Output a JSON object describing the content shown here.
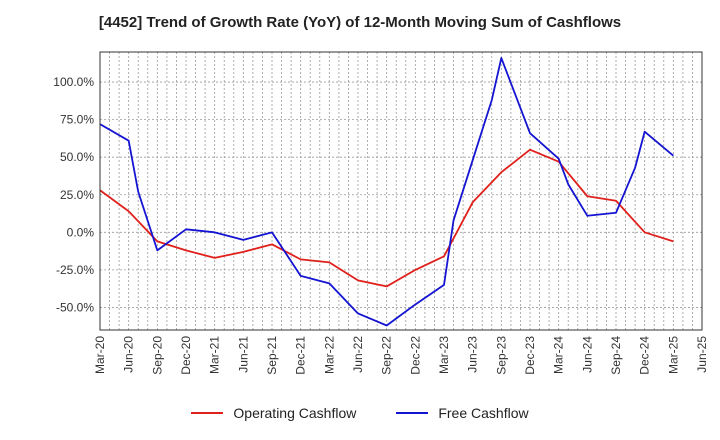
{
  "chart_data": {
    "type": "line",
    "title": "[4452]  Trend of Growth Rate (YoY) of 12-Month Moving Sum of Cashflows",
    "x": [
      "Mar-20",
      "Jun-20",
      "Sep-20",
      "Dec-20",
      "Mar-21",
      "Jun-21",
      "Sep-21",
      "Dec-21",
      "Mar-22",
      "Jun-22",
      "Sep-22",
      "Dec-22",
      "Mar-23",
      "Jun-23",
      "Sep-23",
      "Dec-23",
      "Mar-24",
      "Jun-24",
      "Sep-24",
      "Dec-24",
      "Mar-25",
      "Jun-25"
    ],
    "y_ticks": [
      100,
      75,
      50,
      25,
      0,
      -25,
      -50
    ],
    "y_tick_labels": [
      "100.0%",
      "75.0%",
      "50.0%",
      "25.0%",
      "0.0%",
      "-25.0%",
      "-50.0%"
    ],
    "ylim": [
      -65,
      120
    ],
    "grid": true,
    "legend_position": "bottom-center",
    "series": [
      {
        "name": "Operating Cashflow",
        "color": "#e0201b",
        "points": [
          [
            "Mar-20",
            28
          ],
          [
            "Jun-20",
            14
          ],
          [
            "Sep-20",
            -6
          ],
          [
            "Dec-20",
            -12
          ],
          [
            "Mar-21",
            -17
          ],
          [
            "Jun-21",
            -13
          ],
          [
            "Sep-21",
            -8
          ],
          [
            "Dec-21",
            -18
          ],
          [
            "Mar-22",
            -20
          ],
          [
            "Jun-22",
            -32
          ],
          [
            "Sep-22",
            -36
          ],
          [
            "Dec-22",
            -25
          ],
          [
            "Mar-23",
            -16
          ],
          [
            "Jun-23",
            20
          ],
          [
            "Sep-23",
            40
          ],
          [
            "Dec-23",
            55
          ],
          [
            "Mar-24",
            47
          ],
          [
            "Jun-24",
            24
          ],
          [
            "Sep-24",
            21
          ],
          [
            "Dec-24",
            0
          ],
          [
            "Mar-25",
            -6
          ]
        ]
      },
      {
        "name": "Free Cashflow",
        "color": "#1414d2",
        "points": [
          [
            "Mar-20",
            72
          ],
          [
            "Jun-20",
            61
          ],
          [
            "Jul-20",
            27
          ],
          [
            "Sep-20",
            -12
          ],
          [
            "Dec-20",
            2
          ],
          [
            "Mar-21",
            0
          ],
          [
            "Jun-21",
            -5
          ],
          [
            "Sep-21",
            0
          ],
          [
            "Dec-21",
            -29
          ],
          [
            "Mar-22",
            -34
          ],
          [
            "Jun-22",
            -54
          ],
          [
            "Sep-22",
            -62
          ],
          [
            "Dec-22",
            -48
          ],
          [
            "Mar-23",
            -35
          ],
          [
            "Apr-23",
            8
          ],
          [
            "Jun-23",
            48
          ],
          [
            "Aug-23",
            88
          ],
          [
            "Sep-23",
            116
          ],
          [
            "Dec-23",
            66
          ],
          [
            "Mar-24",
            49
          ],
          [
            "Apr-24",
            32
          ],
          [
            "Jun-24",
            11
          ],
          [
            "Sep-24",
            13
          ],
          [
            "Nov-24",
            43
          ],
          [
            "Dec-24",
            67
          ],
          [
            "Mar-25",
            51
          ]
        ]
      }
    ]
  }
}
